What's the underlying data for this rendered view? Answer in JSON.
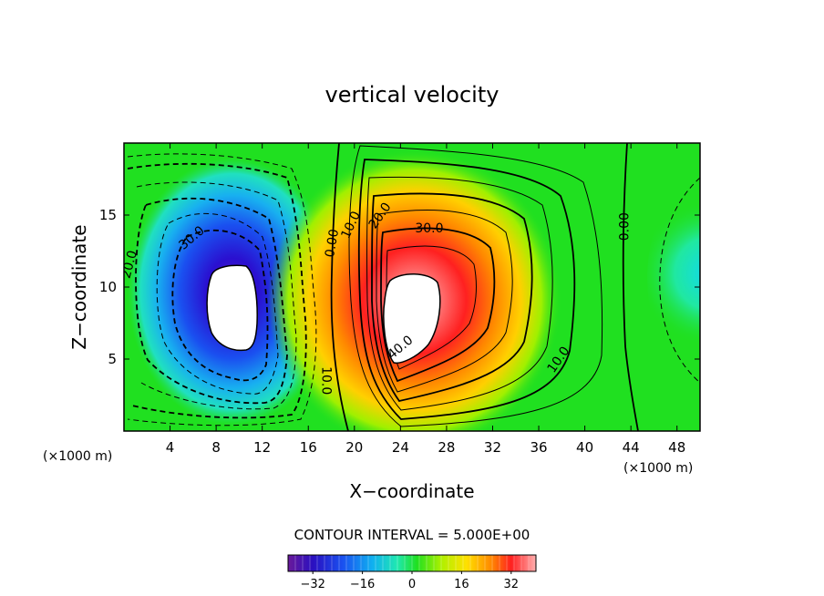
{
  "chart_data": {
    "type": "contour",
    "title": "vertical velocity",
    "xlabel": "X−coordinate",
    "ylabel": "Z−coordinate",
    "x_unit_left": "(×1000 m)",
    "x_unit_right": "(×1000 m)",
    "xlim": [
      0,
      50
    ],
    "ylim": [
      0,
      20
    ],
    "x_ticks": [
      4,
      8,
      12,
      16,
      20,
      24,
      28,
      32,
      36,
      40,
      44,
      48
    ],
    "x_tick_labels": [
      "4",
      "8",
      "12",
      "16",
      "20",
      "24",
      "28",
      "32",
      "36",
      "40",
      "44",
      "48"
    ],
    "y_ticks": [
      5,
      10,
      15
    ],
    "y_tick_labels": [
      "5",
      "10",
      "15"
    ],
    "contour_interval_text": "CONTOUR INTERVAL = 5.000E+00",
    "contour_interval": 5,
    "features": [
      {
        "name": "downdraft",
        "sign": "negative",
        "center_x": 9.5,
        "center_z": 9.2,
        "min_value": -40
      },
      {
        "name": "updraft",
        "sign": "positive",
        "center_x": 24.5,
        "center_z": 9.0,
        "max_value": 45
      },
      {
        "name": "weak-right-downdraft",
        "sign": "negative",
        "center_x": 50,
        "center_z": 11,
        "min_value": -15
      }
    ],
    "contour_labels": [
      {
        "text": "20.0",
        "x": 0.8,
        "z": 11.5,
        "rotate": -75
      },
      {
        "text": "30.0",
        "x": 6.1,
        "z": 13.2,
        "rotate": -40
      },
      {
        "text": "0.00",
        "x": 18.4,
        "z": 13.0,
        "rotate": -80
      },
      {
        "text": "10.0",
        "x": 20.0,
        "z": 14.2,
        "rotate": -65
      },
      {
        "text": "20.0",
        "x": 22.5,
        "z": 14.8,
        "rotate": -55
      },
      {
        "text": "30.0",
        "x": 26.5,
        "z": 13.8,
        "rotate": 0
      },
      {
        "text": "40.0",
        "x": 24.2,
        "z": 5.6,
        "rotate": -40
      },
      {
        "text": "0.00",
        "x": 43.8,
        "z": 14.2,
        "rotate": -90
      },
      {
        "text": "10.0",
        "x": 38.0,
        "z": 4.8,
        "rotate": -55
      },
      {
        "text": "10.0",
        "x": 17.2,
        "z": 3.5,
        "rotate": 90
      }
    ],
    "colorbar": {
      "min": -40,
      "max": 40,
      "tick_values": [
        -32,
        -16,
        0,
        16,
        32
      ],
      "tick_labels": [
        "−32",
        "−16",
        "0",
        "16",
        "32"
      ]
    }
  }
}
